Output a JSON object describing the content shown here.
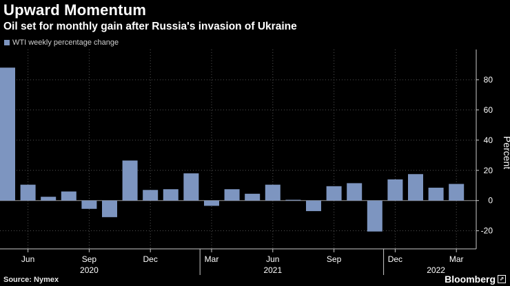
{
  "header": {
    "title": "Upward Momentum",
    "subtitle": "Oil set for monthly gain after Russia's invasion of Ukraine"
  },
  "legend": {
    "label": "WTI weekly percentage change"
  },
  "footer": {
    "source": "Source: Nymex",
    "brand": "Bloomberg"
  },
  "colors": {
    "bar": "#7d95c0",
    "grid": "#555555",
    "axis": "#cccccc",
    "background": "#000000"
  },
  "chart_data": {
    "type": "bar",
    "title": "Upward Momentum",
    "subtitle": "Oil set for monthly gain after Russia's invasion of Ukraine",
    "ylabel": "Percent",
    "xlabel": "",
    "ylim": [
      -32,
      100
    ],
    "yticks": [
      -20,
      0,
      20,
      40,
      60,
      80
    ],
    "grid": true,
    "legend_position": "top-left",
    "series": [
      {
        "name": "WTI weekly percentage change",
        "values": [
          88,
          10.5,
          2.5,
          6,
          -5.5,
          -11,
          26.5,
          7,
          7.5,
          18,
          -3.5,
          7.5,
          4.5,
          10.5,
          0.5,
          -7,
          9.5,
          11.5,
          -20.5,
          14,
          17.5,
          8.5,
          11
        ]
      }
    ],
    "x_tick_labels": [
      {
        "label": "Jun",
        "index": 1
      },
      {
        "label": "Sep",
        "index": 4
      },
      {
        "label": "Dec",
        "index": 7
      },
      {
        "label": "Mar",
        "index": 10
      },
      {
        "label": "Jun",
        "index": 13
      },
      {
        "label": "Sep",
        "index": 16
      },
      {
        "label": "Dec",
        "index": 19
      },
      {
        "label": "Mar",
        "index": 22
      }
    ],
    "year_labels": [
      {
        "label": "2020",
        "index": 4
      },
      {
        "label": "2021",
        "index": 13
      },
      {
        "label": "2022",
        "index": 21
      }
    ],
    "year_boundaries": [
      9,
      18
    ]
  }
}
